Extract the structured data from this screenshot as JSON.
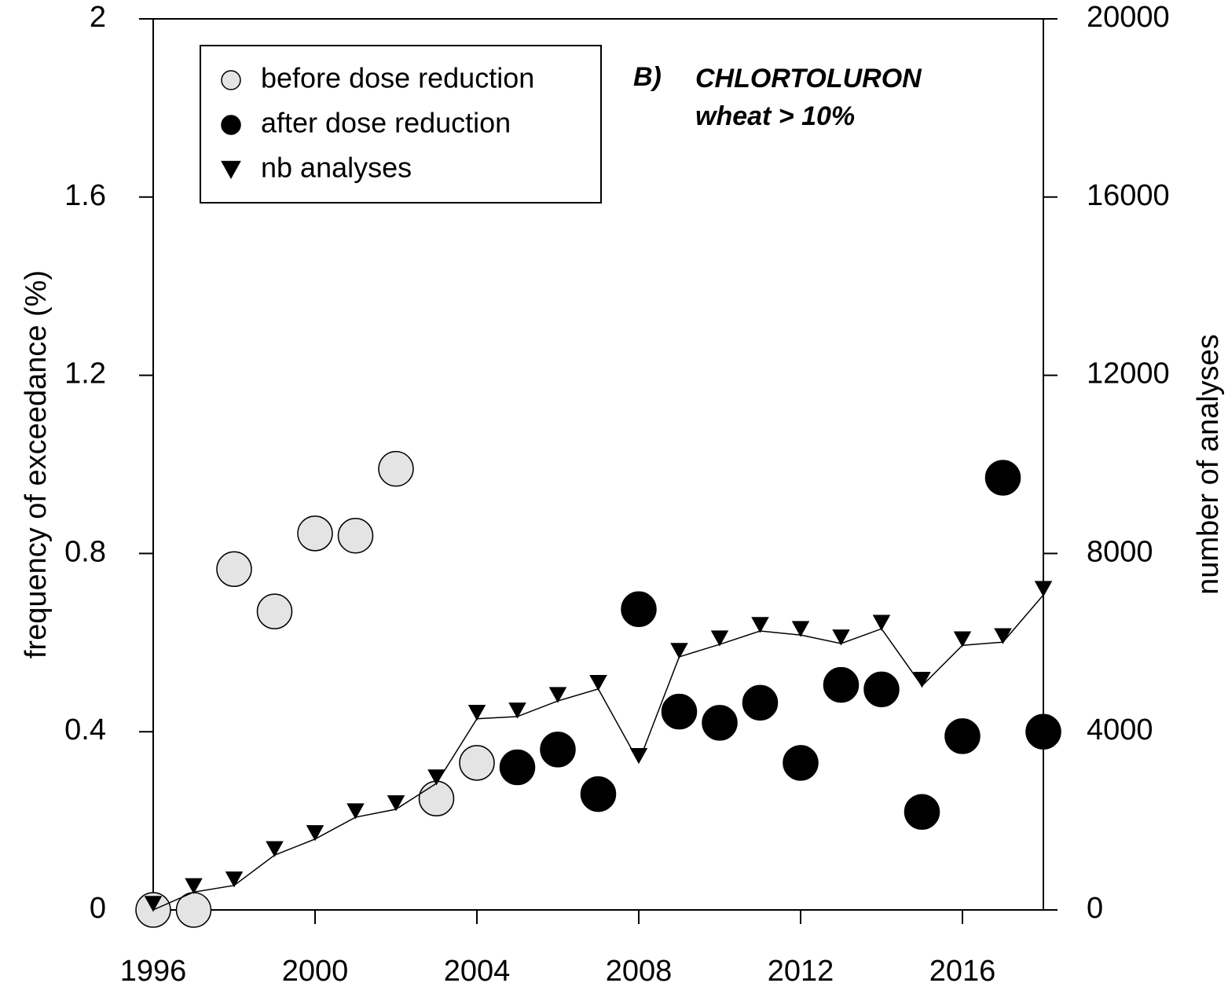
{
  "chart_data": {
    "type": "scatter",
    "annotations": [
      "B)",
      "CHLORTOLURON",
      "wheat > 10%"
    ],
    "y_label": "frequency of exceedance (%)",
    "y2_label": "number of analyses",
    "xlim": [
      1996,
      2018
    ],
    "xticks": [
      1996,
      2000,
      2004,
      2008,
      2012,
      2016
    ],
    "ylim": [
      0,
      2
    ],
    "yticks": [
      0,
      0.4,
      0.8,
      1.2,
      1.6,
      2
    ],
    "y2lim": [
      0,
      20000
    ],
    "y2ticks": [
      0,
      4000,
      8000,
      12000,
      16000,
      20000
    ],
    "legend": "top-left",
    "series": [
      {
        "name": "before dose reduction",
        "color": "#e4e4e4",
        "marker": "circle",
        "x": [
          1996,
          1997,
          1998,
          1999,
          2000,
          2001,
          2002,
          2003,
          2004
        ],
        "values": [
          0,
          0,
          0.765,
          0.67,
          0.845,
          0.84,
          0.99,
          0.25,
          0.33
        ]
      },
      {
        "name": "after dose reduction",
        "color": "#000000",
        "marker": "circle",
        "x": [
          2005,
          2006,
          2007,
          2008,
          2009,
          2010,
          2011,
          2012,
          2013,
          2014,
          2015,
          2016,
          2017,
          2018
        ],
        "values": [
          0.32,
          0.36,
          0.26,
          0.675,
          0.445,
          0.42,
          0.465,
          0.33,
          0.505,
          0.495,
          0.22,
          0.39,
          0.97,
          0.4
        ]
      },
      {
        "name": "nb analyses",
        "color": "#000000",
        "marker": "triangle",
        "axis": "y2",
        "x": [
          1996,
          1997,
          1998,
          1999,
          2000,
          2001,
          2002,
          2003,
          2004,
          2005,
          2006,
          2007,
          2008,
          2009,
          2010,
          2011,
          2012,
          2013,
          2014,
          2015,
          2016,
          2017,
          2018
        ],
        "values": [
          0,
          400,
          550,
          1230,
          1590,
          2080,
          2260,
          2840,
          4290,
          4340,
          4690,
          4960,
          3320,
          5680,
          5960,
          6260,
          6170,
          5980,
          6310,
          5030,
          5940,
          6010,
          7070
        ]
      }
    ]
  }
}
